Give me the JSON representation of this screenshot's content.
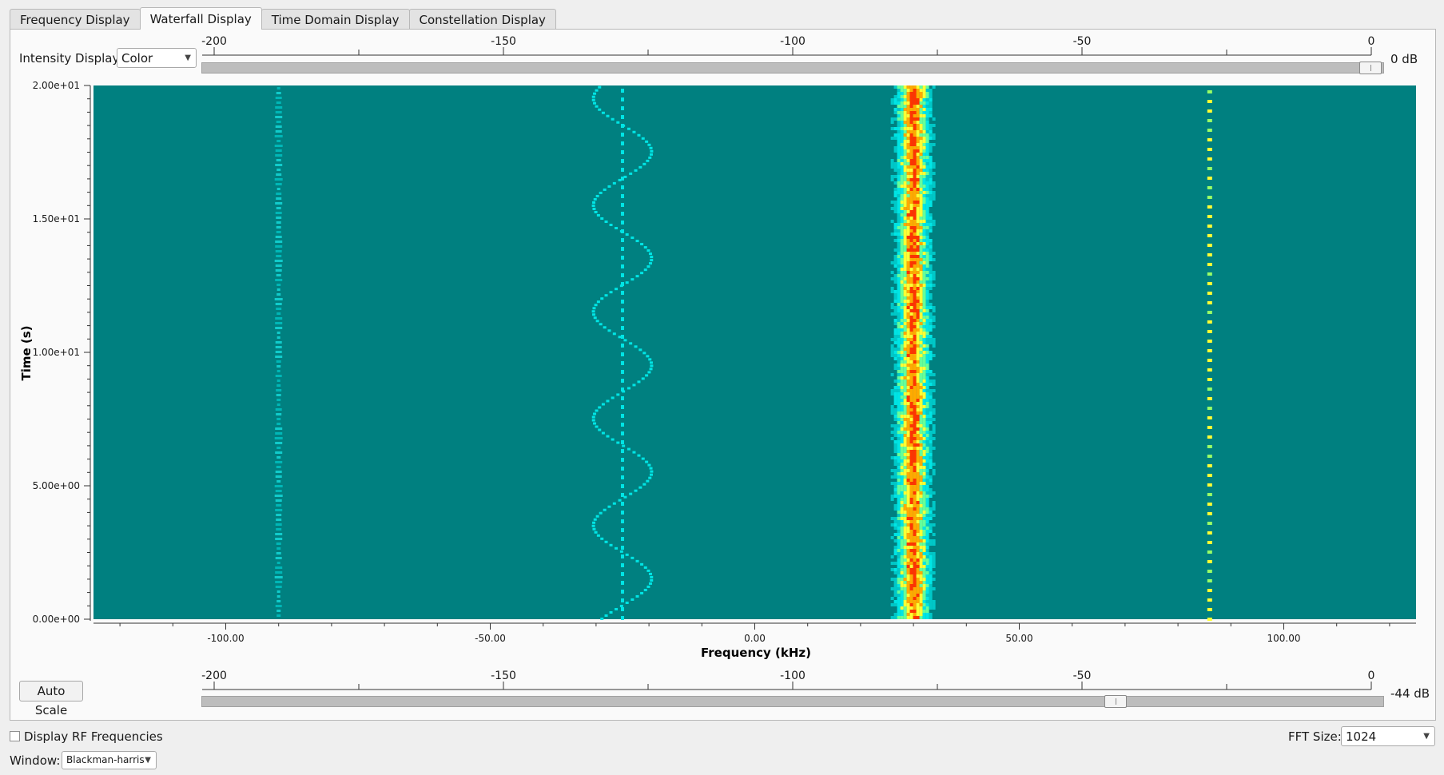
{
  "tabs": [
    "Frequency Display",
    "Waterfall Display",
    "Time Domain Display",
    "Constellation Display"
  ],
  "active_tab": 1,
  "intensity": {
    "label": "Intensity Display:",
    "value": "Color"
  },
  "top_scale": {
    "ticks": [
      "-200",
      "-150",
      "-100",
      "-50",
      "0"
    ],
    "value_label": "0 dB",
    "slider_level": 1.0
  },
  "bottom_scale": {
    "ticks": [
      "-200",
      "-150",
      "-100",
      "-50",
      "0"
    ],
    "value_label": "-44 dB",
    "slider_level": 0.78
  },
  "auto_scale_label": "Auto Scale",
  "display_rf": {
    "label": "Display RF Frequencies",
    "checked": false
  },
  "fft": {
    "label": "FFT Size:",
    "value": "1024"
  },
  "window": {
    "label": "Window:",
    "value": "Blackman-harris"
  },
  "colors": {
    "background": "#008080",
    "low": "#00e5e5",
    "mid": "#ffff33",
    "high": "#ff3300"
  },
  "chart_data": {
    "type": "heatmap",
    "xlabel": "Frequency (kHz)",
    "ylabel": "Time (s)",
    "xlim": [
      -125,
      125
    ],
    "ylim": [
      0,
      20
    ],
    "x_ticks": [
      "-100.00",
      "-50.00",
      "0.00",
      "50.00",
      "100.00"
    ],
    "y_ticks": [
      "0.00e+00",
      "5.00e+00",
      "1.00e+01",
      "1.50e+01",
      "2.00e+01"
    ],
    "signals": [
      {
        "kind": "faint-carrier",
        "freq_khz": -90,
        "level": "low"
      },
      {
        "kind": "fm-sweep",
        "center_khz": -25,
        "deviation_khz": 5.5,
        "period_s": 4,
        "level": "low"
      },
      {
        "kind": "dotted-carrier",
        "freq_khz": -25,
        "level": "low"
      },
      {
        "kind": "strong-carrier",
        "freq_khz": 30,
        "width_khz": 8,
        "level": "high"
      },
      {
        "kind": "pulsed-carrier",
        "freq_khz": 86,
        "level": "mid"
      }
    ]
  }
}
